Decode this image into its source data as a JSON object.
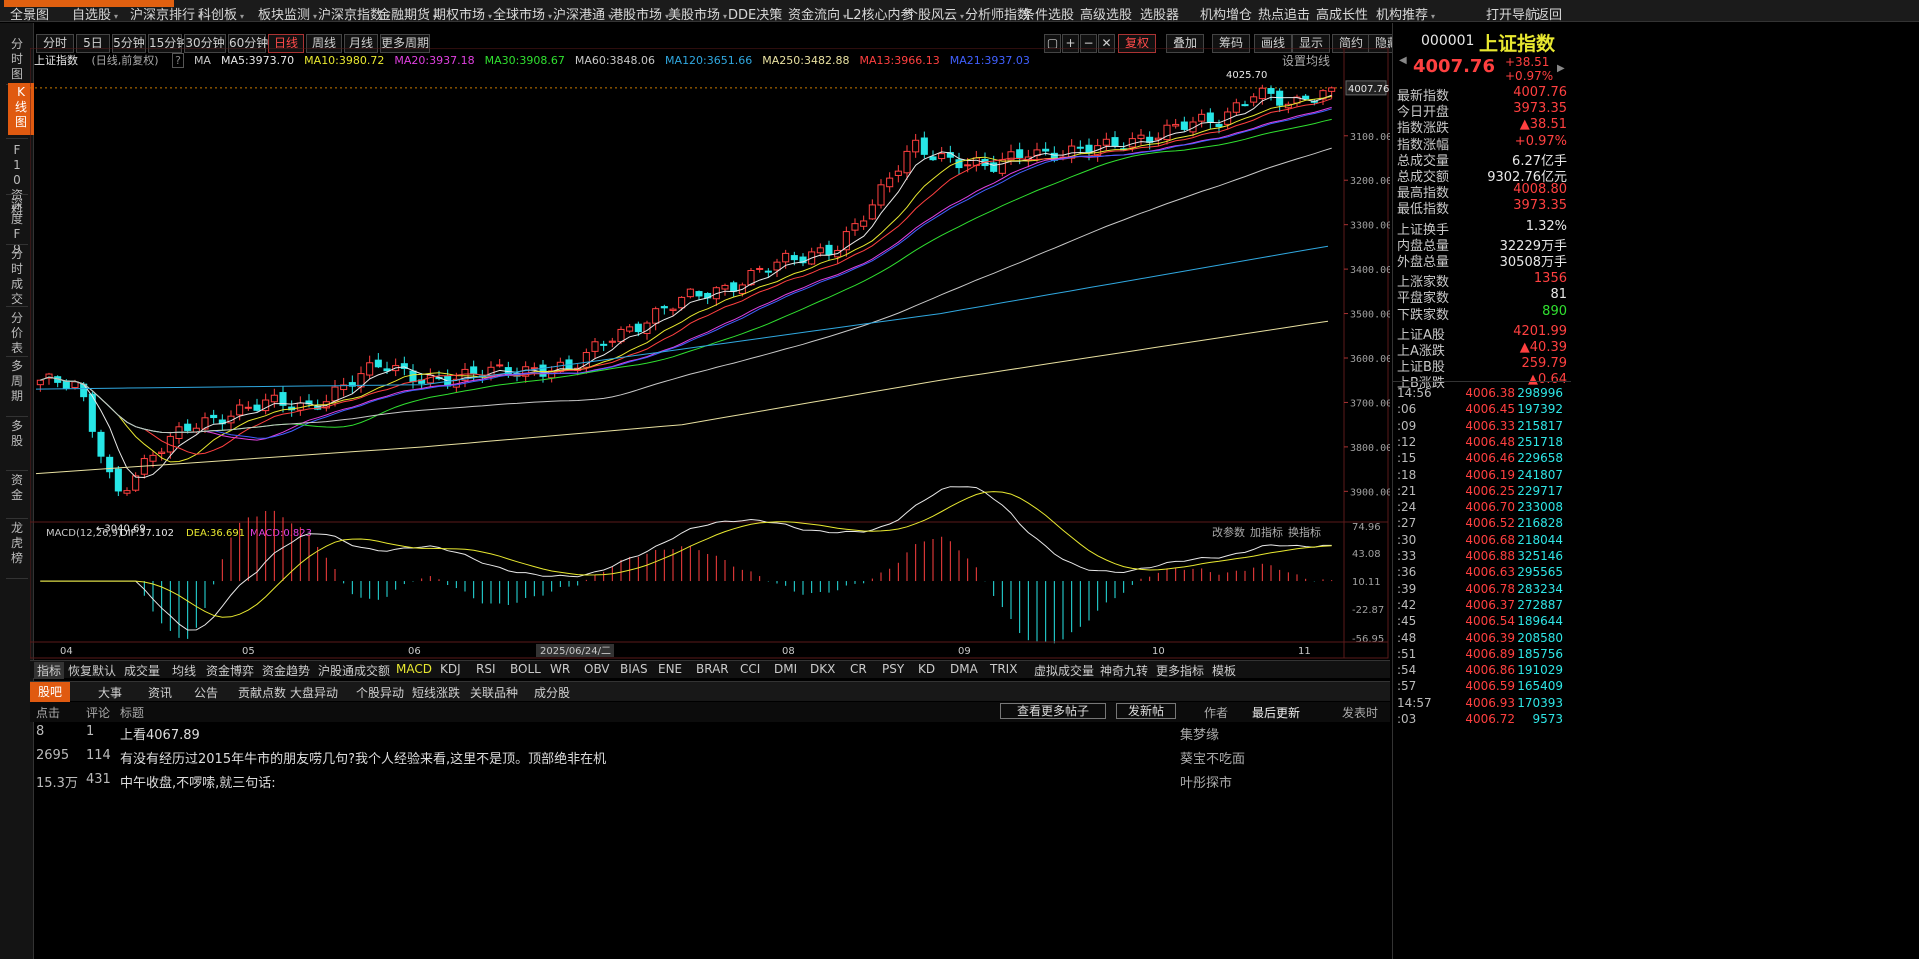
{
  "topbar": {
    "items": [
      {
        "label": "全景图",
        "chev": false
      },
      {
        "label": "自选股",
        "chev": true
      },
      {
        "label": "沪深京排行",
        "chev": true
      },
      {
        "label": "科创板",
        "chev": true
      },
      {
        "label": "板块监测",
        "chev": true
      },
      {
        "label": "沪深京指数",
        "chev": true
      },
      {
        "label": "金融期货",
        "chev": true
      },
      {
        "label": "期权市场",
        "chev": true
      },
      {
        "label": "全球市场",
        "chev": true
      },
      {
        "label": "沪深港通",
        "chev": true
      },
      {
        "label": "港股市场",
        "chev": true
      },
      {
        "label": "美股市场",
        "chev": true
      },
      {
        "label": "DDE决策",
        "chev": false
      },
      {
        "label": "资金流向",
        "chev": true
      },
      {
        "label": "L2核心内参",
        "chev": false
      },
      {
        "label": "个股风云",
        "chev": true
      },
      {
        "label": "分析师指数",
        "chev": false
      },
      {
        "label": "条件选股",
        "chev": false
      },
      {
        "label": "高级选股",
        "chev": false
      },
      {
        "label": "选股器",
        "chev": false
      },
      {
        "label": "机构增仓",
        "chev": false
      },
      {
        "label": "热点追击",
        "chev": false
      },
      {
        "label": "高成长性",
        "chev": false
      },
      {
        "label": "机构推荐",
        "chev": true
      },
      {
        "label": "打开导航",
        "chev": false
      },
      {
        "label": "返回",
        "chev": false
      }
    ]
  },
  "lefttabs": [
    "分时图",
    "K线图",
    "F10资料",
    "深度F9",
    "分时成交",
    "分价表",
    "多周期",
    "多股",
    "资金",
    "龙虎榜"
  ],
  "toolbar": {
    "periods": [
      "分时",
      "5日",
      "5分钟",
      "15分钟",
      "30分钟",
      "60分钟",
      "日线",
      "周线",
      "月线",
      "更多周期"
    ],
    "active_period": "日线",
    "right_buttons": [
      "复权",
      "叠加",
      "筹码",
      "画线",
      "显示",
      "简约",
      "隐藏"
    ]
  },
  "chart": {
    "title": "上证指数",
    "subtitle": "(日线,前复权)",
    "ma_legend": [
      {
        "label": "MA",
        "color": "#c8c8c8"
      },
      {
        "label": "MA5:3973.70",
        "color": "#e8e8e8"
      },
      {
        "label": "MA10:3980.72",
        "color": "#e8e830"
      },
      {
        "label": "MA20:3937.18",
        "color": "#e040e0"
      },
      {
        "label": "MA30:3908.67",
        "color": "#30e030"
      },
      {
        "label": "MA60:3848.06",
        "color": "#c8c8c8"
      },
      {
        "label": "MA120:3651.66",
        "color": "#30a8e0"
      },
      {
        "label": "MA250:3482.88",
        "color": "#e8e0a0"
      },
      {
        "label": "MA13:3966.13",
        "color": "#ff4040"
      },
      {
        "label": "MA21:3937.03",
        "color": "#4060ff"
      }
    ],
    "settings_label": "设置均线",
    "price_axis": [
      "3900.00",
      "3800.00",
      "3700.00",
      "3600.00",
      "3500.00",
      "3400.00",
      "3300.00",
      "3200.00",
      "3100.00"
    ],
    "last_price_tag": "4007.76",
    "high_label": "4025.70",
    "low_label": "3040.69",
    "date_axis": [
      "04",
      "05",
      "06",
      "2025/06/24/二",
      "08",
      "09",
      "10",
      "11"
    ],
    "macd": {
      "params": "MACD(12,26,9)",
      "dif": "DIF:37.102",
      "dea": "DEA:36.691",
      "macd": "MACD:0.823",
      "buttons": [
        "改参数",
        "加指标",
        "换指标"
      ],
      "axis": [
        "74.96",
        "43.08",
        "10.11",
        "-22.87",
        "-56.95"
      ]
    }
  },
  "chart_data": {
    "type": "candlestick",
    "title": "上证指数",
    "subtitle": "(日线,前复权)",
    "series_name": "上证指数 日线",
    "x_range": [
      "2025-03",
      "2025-11-06"
    ],
    "ylim": [
      3040,
      4030
    ],
    "y_ticks": [
      3100,
      3200,
      3300,
      3400,
      3500,
      3600,
      3700,
      3800,
      3900
    ],
    "highest": 4025.7,
    "lowest": 3040.69,
    "last": 4007.76,
    "close_path": [
      {
        "x": "04",
        "y": 3350
      },
      {
        "x": "04",
        "y": 3330
      },
      {
        "x": "04",
        "y": 3100
      },
      {
        "x": "04",
        "y": 3180
      },
      {
        "x": "04",
        "y": 3250
      },
      {
        "x": "04",
        "y": 3280
      },
      {
        "x": "04",
        "y": 3295
      },
      {
        "x": "05",
        "y": 3290
      },
      {
        "x": "05",
        "y": 3340
      },
      {
        "x": "05",
        "y": 3380
      },
      {
        "x": "05",
        "y": 3360
      },
      {
        "x": "05",
        "y": 3350
      },
      {
        "x": "06",
        "y": 3370
      },
      {
        "x": "06",
        "y": 3380
      },
      {
        "x": "06",
        "y": 3370
      },
      {
        "x": "06",
        "y": 3450
      },
      {
        "x": "06",
        "y": 3490
      },
      {
        "x": "06",
        "y": 3530
      },
      {
        "x": "06",
        "y": 3560
      },
      {
        "x": "08",
        "y": 3600
      },
      {
        "x": "08",
        "y": 3620
      },
      {
        "x": "08",
        "y": 3660
      },
      {
        "x": "08",
        "y": 3750
      },
      {
        "x": "08",
        "y": 3880
      },
      {
        "x": "09",
        "y": 3850
      },
      {
        "x": "09",
        "y": 3820
      },
      {
        "x": "09",
        "y": 3870
      },
      {
        "x": "09",
        "y": 3860
      },
      {
        "x": "10",
        "y": 3870
      },
      {
        "x": "10",
        "y": 3900
      },
      {
        "x": "10",
        "y": 3920
      },
      {
        "x": "10",
        "y": 3930
      },
      {
        "x": "11",
        "y": 4010
      },
      {
        "x": "11",
        "y": 3960
      },
      {
        "x": "11",
        "y": 4007.76
      }
    ],
    "moving_averages": {
      "MA5": 3973.7,
      "MA10": 3980.72,
      "MA20": 3937.18,
      "MA30": 3908.67,
      "MA60": 3848.06,
      "MA120": 3651.66,
      "MA250": 3482.88,
      "MA13": 3966.13,
      "MA21": 3937.03
    },
    "macd": {
      "DIF": 37.102,
      "DEA": 36.691,
      "MACD": 0.823,
      "ylim": [
        -56.95,
        74.96
      ]
    }
  },
  "indicators": [
    "指标",
    "恢复默认",
    "成交量",
    "均线",
    "资金博弈",
    "资金趋势",
    "沪股通成交额",
    "MACD",
    "KDJ",
    "RSI",
    "BOLL",
    "WR",
    "OBV",
    "BIAS",
    "ENE",
    "BRAR",
    "CCI",
    "DMI",
    "DKX",
    "CR",
    "PSY",
    "KD",
    "DMA",
    "TRIX",
    "虚拟成交量",
    "神奇九转",
    "更多指标",
    "模板"
  ],
  "active_indicator": "MACD",
  "bottom": {
    "tabs": [
      "股吧",
      "大事",
      "资讯",
      "公告",
      "贡献点数",
      "大盘异动",
      "个股异动",
      "短线涨跌",
      "关联品种",
      "成分股"
    ],
    "active_tab": "股吧",
    "headers": {
      "clicks": "点击",
      "comments": "评论",
      "title": "标题",
      "author": "作者",
      "latest": "最后更新"
    },
    "more_posts": "查看更多帖子",
    "new_post": "发新帖",
    "post_time_label": "发表时",
    "posts": [
      {
        "clicks": "8",
        "comments": "1",
        "title": "上看4067.89",
        "author": "集梦缘"
      },
      {
        "clicks": "2695",
        "comments": "114",
        "title": "有没有经历过2015年牛市的朋友唠几句?我个人经验来看,这里不是顶。顶部绝非在机",
        "author": "葵宝不吃面"
      },
      {
        "clicks": "15.3万",
        "comments": "431",
        "title": "中午收盘,不啰嗦,就三句话:",
        "author": "叶彤探市"
      }
    ]
  },
  "quote": {
    "code": "000001",
    "name": "上证指数",
    "price": "4007.76",
    "change": "+38.51",
    "change_pct": "+0.97%",
    "rows": [
      {
        "label": "最新指数",
        "value": "4007.76",
        "color": "red"
      },
      {
        "label": "今日开盘",
        "value": "3973.35",
        "color": "red"
      },
      {
        "label": "指数涨跌",
        "value": "▲38.51",
        "color": "red"
      },
      {
        "label": "指数涨幅",
        "value": "+0.97%",
        "color": "red"
      },
      {
        "label": "总成交量",
        "value": "6.27亿手",
        "color": "white"
      },
      {
        "label": "总成交额",
        "value": "9302.76亿元",
        "color": "white"
      },
      {
        "label": "最高指数",
        "value": "4008.80",
        "color": "red"
      },
      {
        "label": "最低指数",
        "value": "3973.35",
        "color": "red"
      },
      {
        "label": "上证换手",
        "value": "1.32%",
        "color": "white"
      },
      {
        "label": "内盘总量",
        "value": "32229万手",
        "color": "white"
      },
      {
        "label": "外盘总量",
        "value": "30508万手",
        "color": "white"
      },
      {
        "label": "上涨家数",
        "value": "1356",
        "color": "red"
      },
      {
        "label": "平盘家数",
        "value": "81",
        "color": "white"
      },
      {
        "label": "下跌家数",
        "value": "890",
        "color": "green"
      },
      {
        "label": "上证A股",
        "value": "4201.99",
        "color": "red"
      },
      {
        "label": "上A涨跌",
        "value": "▲40.39",
        "color": "red"
      },
      {
        "label": "上证B股",
        "value": "259.79",
        "color": "red"
      },
      {
        "label": "上B涨跌",
        "value": "▲0.64",
        "color": "red"
      }
    ],
    "ticks": [
      {
        "time": "14:56",
        "price": "4006.38",
        "vol": "298996"
      },
      {
        "time": ":06",
        "price": "4006.45",
        "vol": "197392"
      },
      {
        "time": ":09",
        "price": "4006.33",
        "vol": "215817"
      },
      {
        "time": ":12",
        "price": "4006.48",
        "vol": "251718"
      },
      {
        "time": ":15",
        "price": "4006.46",
        "vol": "229658"
      },
      {
        "time": ":18",
        "price": "4006.19",
        "vol": "241807"
      },
      {
        "time": ":21",
        "price": "4006.25",
        "vol": "229717"
      },
      {
        "time": ":24",
        "price": "4006.70",
        "vol": "233008"
      },
      {
        "time": ":27",
        "price": "4006.52",
        "vol": "216828"
      },
      {
        "time": ":30",
        "price": "4006.68",
        "vol": "218044"
      },
      {
        "time": ":33",
        "price": "4006.88",
        "vol": "325146"
      },
      {
        "time": ":36",
        "price": "4006.63",
        "vol": "295565"
      },
      {
        "time": ":39",
        "price": "4006.78",
        "vol": "283234"
      },
      {
        "time": ":42",
        "price": "4006.37",
        "vol": "272887"
      },
      {
        "time": ":45",
        "price": "4006.54",
        "vol": "189644"
      },
      {
        "time": ":48",
        "price": "4006.39",
        "vol": "208580"
      },
      {
        "time": ":51",
        "price": "4006.89",
        "vol": "185756"
      },
      {
        "time": ":54",
        "price": "4006.86",
        "vol": "191029"
      },
      {
        "time": ":57",
        "price": "4006.59",
        "vol": "165409"
      },
      {
        "time": "14:57",
        "price": "4006.93",
        "vol": "170393"
      },
      {
        "time": ":03",
        "price": "4006.72",
        "vol": "9573"
      }
    ]
  }
}
